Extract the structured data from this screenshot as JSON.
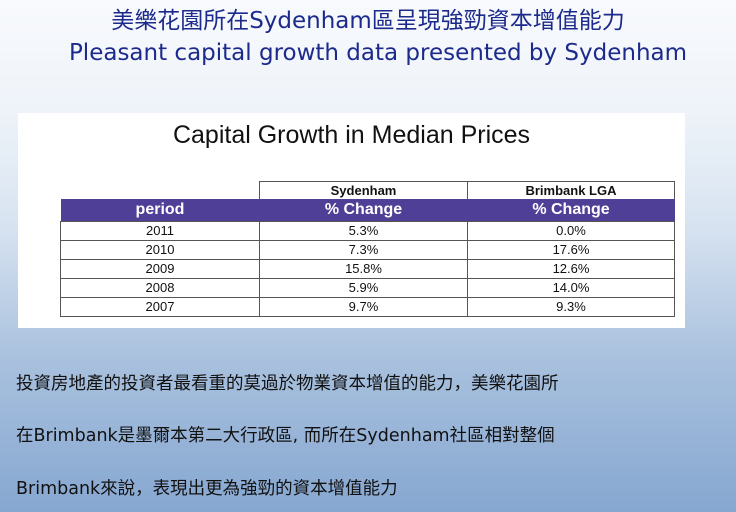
{
  "slide": {
    "title_cn": "美樂花園所在Sydenham區呈現強勁資本增值能力",
    "title_en": "Pleasant capital growth data presented by Sydenham"
  },
  "table_image": {
    "caption": "Capital Growth in Median Prices",
    "region_headers": [
      "",
      "Sydenham",
      "Brimbank LGA"
    ],
    "column_headers": [
      "period",
      "% Change",
      "% Change"
    ],
    "rows": [
      {
        "period": "2011",
        "sydenham": "5.3%",
        "brimbank": "0.0%"
      },
      {
        "period": "2010",
        "sydenham": "7.3%",
        "brimbank": "17.6%"
      },
      {
        "period": "2009",
        "sydenham": "15.8%",
        "brimbank": "12.6%"
      },
      {
        "period": "2008",
        "sydenham": "5.9%",
        "brimbank": "14.0%"
      },
      {
        "period": "2007",
        "sydenham": "9.7%",
        "brimbank": "9.3%"
      }
    ]
  },
  "body": {
    "lines": [
      "投資房地產的投資者最看重的莫過於物業資本增值的能力，美樂花園所",
      "在Brimbank是墨爾本第二大行政區, 而所在Sydenham社區相對整個",
      "Brimbank來說，表現出更為強勁的資本增值能力"
    ]
  },
  "colors": {
    "title": "#1c2a8c",
    "table_header_bg": "#4f3f97",
    "table_header_text": "#ffffff"
  }
}
